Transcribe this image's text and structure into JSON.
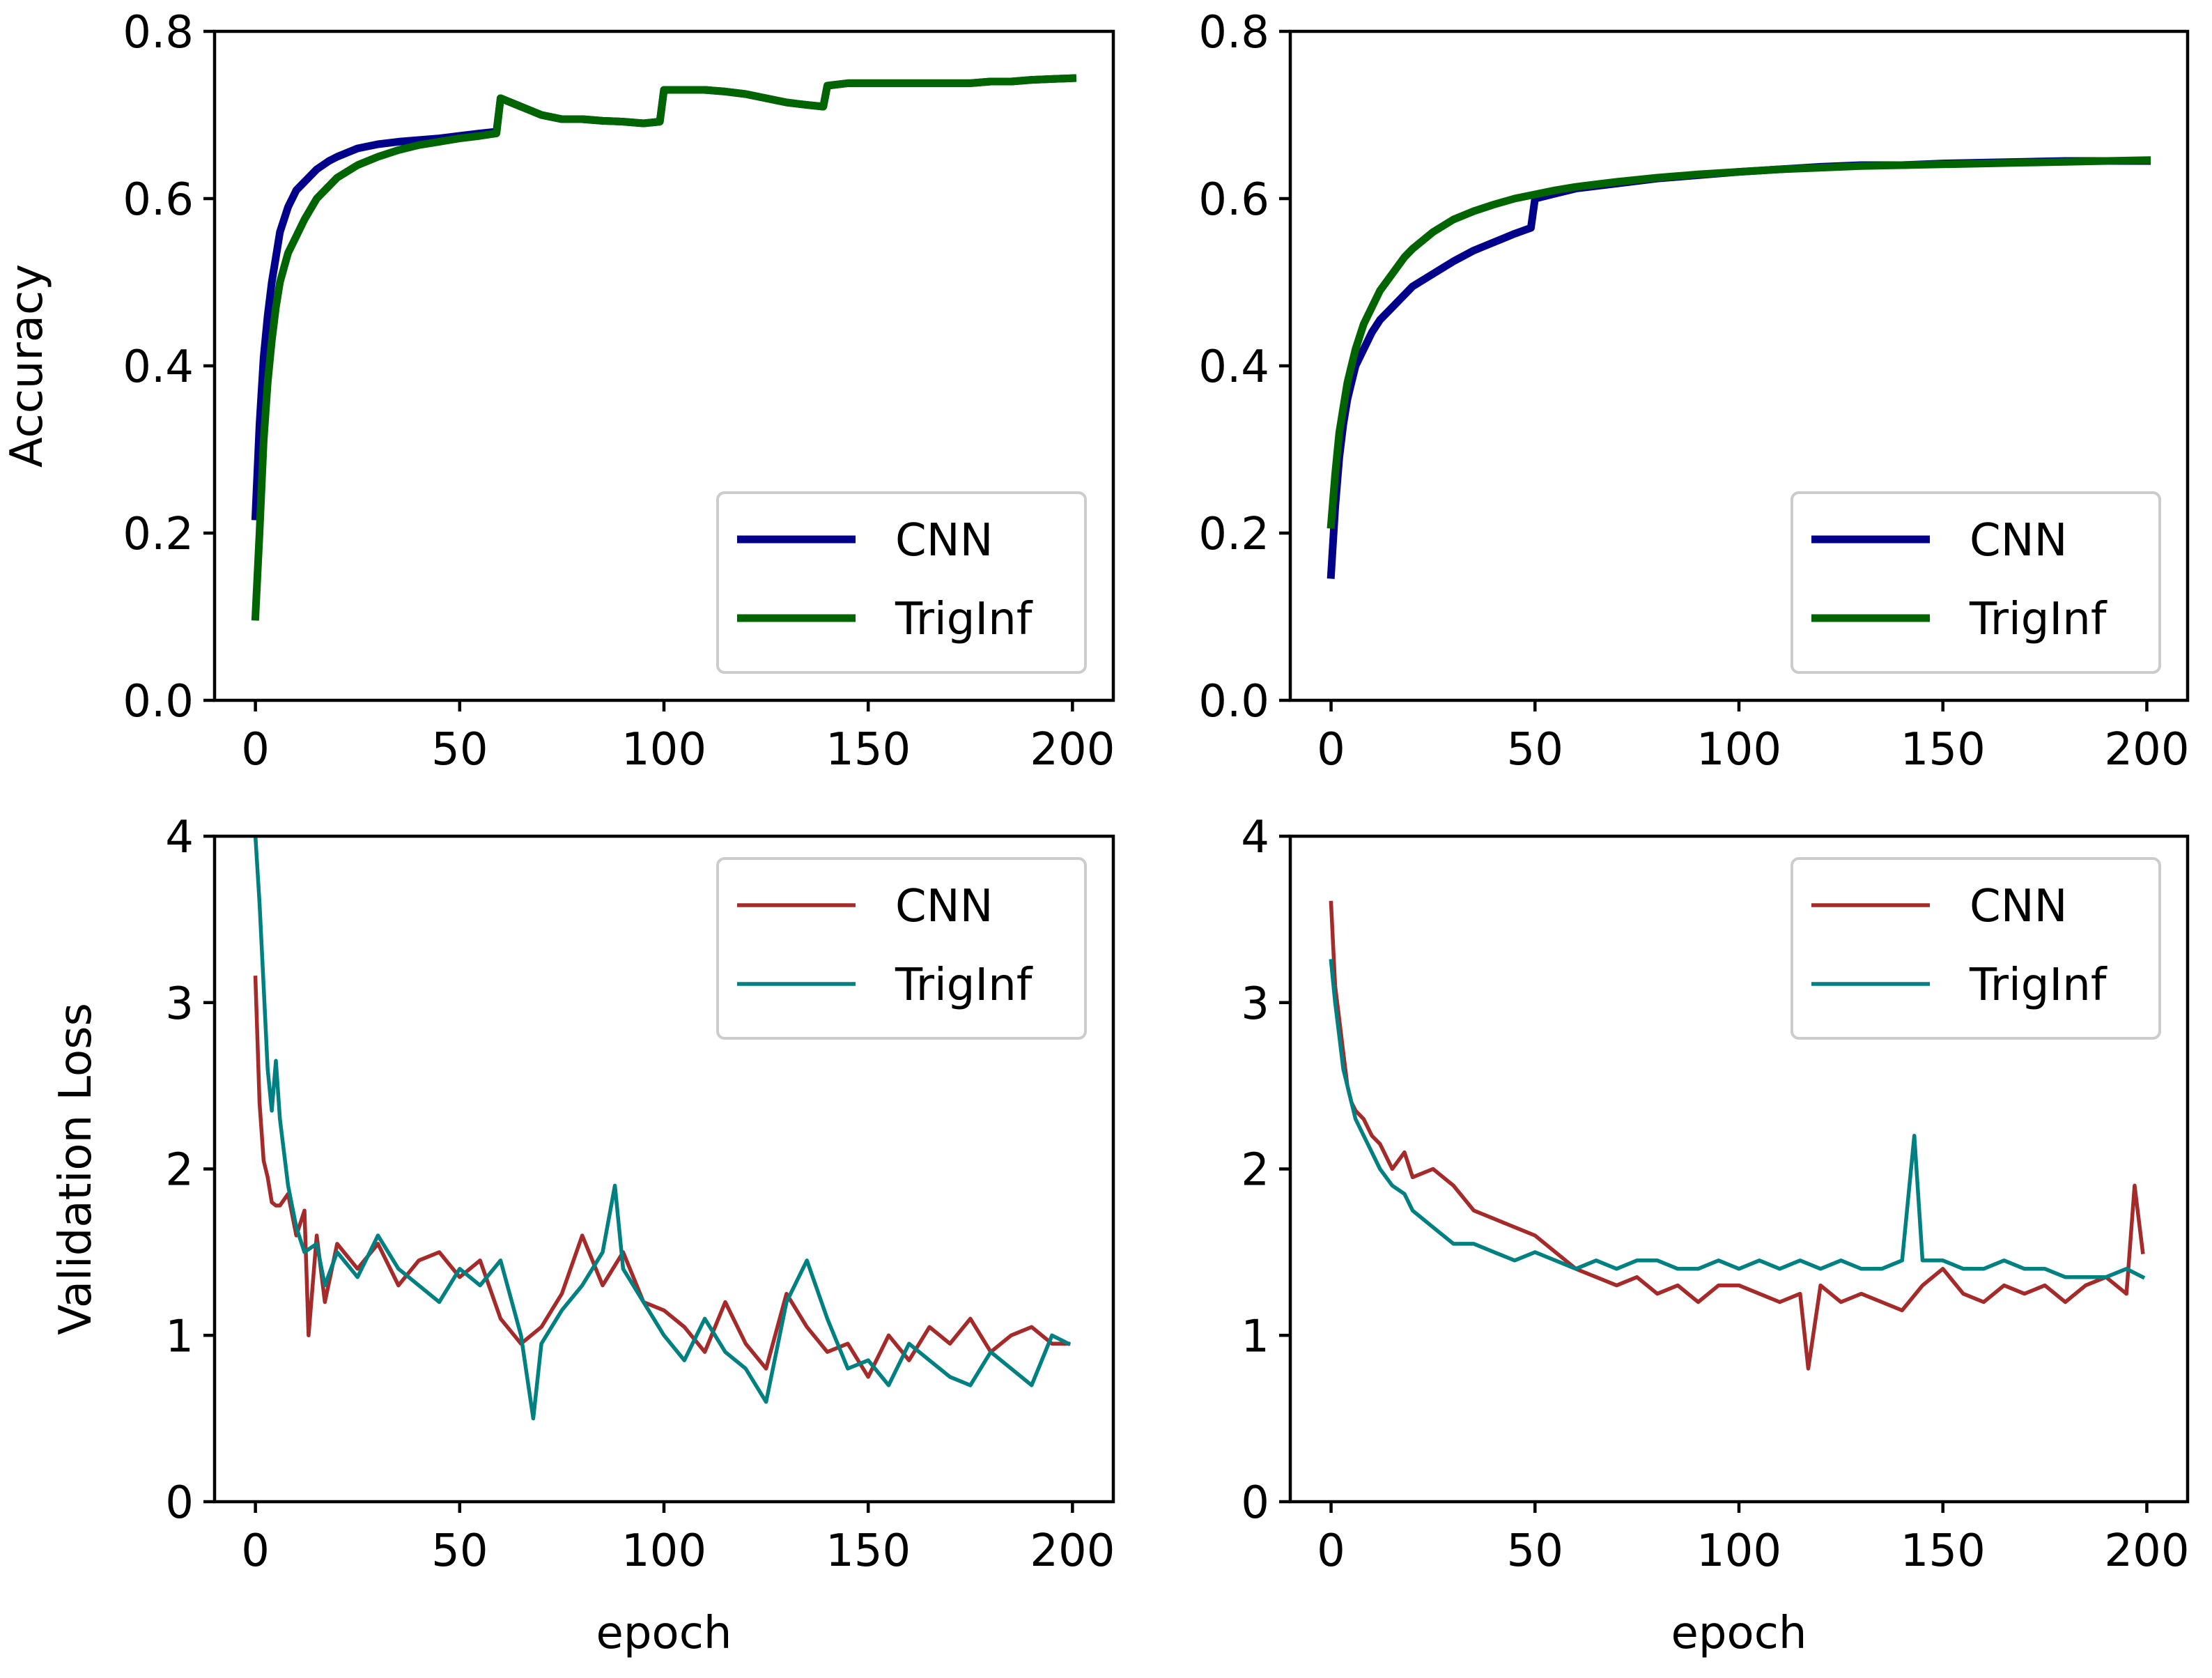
{
  "chart_data": [
    {
      "type": "line",
      "panel": "top-left",
      "title": "",
      "xlabel": "",
      "ylabel": "Accuracy",
      "xlim": [
        -10,
        210
      ],
      "ylim": [
        0.0,
        0.8
      ],
      "xticks": [
        0,
        50,
        100,
        150,
        200
      ],
      "xtick_labels": [
        "0",
        "50",
        "100",
        "150",
        "200"
      ],
      "yticks": [
        0.0,
        0.2,
        0.4,
        0.6,
        0.8
      ],
      "ytick_labels": [
        "0.0",
        "0.2",
        "0.4",
        "0.6",
        "0.8"
      ],
      "legend": "lower right",
      "grid": false,
      "series": [
        {
          "name": "CNN",
          "color": "#00008b",
          "x": [
            0,
            1,
            2,
            3,
            4,
            5,
            6,
            8,
            10,
            12,
            15,
            18,
            20,
            25,
            30,
            35,
            40,
            45,
            50,
            55,
            59,
            60,
            65,
            70,
            75,
            80,
            85,
            90,
            95,
            99,
            100,
            105,
            110,
            115,
            120,
            125,
            130,
            135,
            139,
            140,
            145,
            150,
            155,
            160,
            165,
            170,
            175,
            180,
            185,
            190,
            195,
            200
          ],
          "values": [
            0.22,
            0.33,
            0.41,
            0.46,
            0.5,
            0.53,
            0.56,
            0.59,
            0.61,
            0.62,
            0.635,
            0.645,
            0.65,
            0.66,
            0.665,
            0.668,
            0.67,
            0.672,
            0.675,
            0.678,
            0.68,
            0.72,
            0.71,
            0.7,
            0.695,
            0.695,
            0.693,
            0.692,
            0.69,
            0.692,
            0.73,
            0.73,
            0.73,
            0.728,
            0.725,
            0.72,
            0.715,
            0.712,
            0.71,
            0.735,
            0.738,
            0.738,
            0.738,
            0.738,
            0.738,
            0.738,
            0.738,
            0.74,
            0.74,
            0.742,
            0.743,
            0.744
          ]
        },
        {
          "name": "TrigInf",
          "color": "#006400",
          "x": [
            0,
            1,
            2,
            3,
            4,
            5,
            6,
            8,
            10,
            12,
            15,
            18,
            20,
            25,
            30,
            35,
            40,
            45,
            50,
            55,
            59,
            60,
            65,
            70,
            75,
            80,
            85,
            90,
            95,
            99,
            100,
            105,
            110,
            115,
            120,
            125,
            130,
            135,
            139,
            140,
            145,
            150,
            155,
            160,
            165,
            170,
            175,
            180,
            185,
            190,
            195,
            200
          ],
          "values": [
            0.1,
            0.2,
            0.31,
            0.38,
            0.43,
            0.47,
            0.5,
            0.535,
            0.555,
            0.575,
            0.6,
            0.615,
            0.625,
            0.64,
            0.65,
            0.658,
            0.664,
            0.668,
            0.672,
            0.675,
            0.678,
            0.72,
            0.71,
            0.7,
            0.695,
            0.695,
            0.693,
            0.692,
            0.69,
            0.692,
            0.73,
            0.73,
            0.73,
            0.728,
            0.725,
            0.72,
            0.715,
            0.712,
            0.71,
            0.735,
            0.738,
            0.738,
            0.738,
            0.738,
            0.738,
            0.738,
            0.738,
            0.74,
            0.74,
            0.742,
            0.743,
            0.744
          ]
        }
      ]
    },
    {
      "type": "line",
      "panel": "top-right",
      "title": "",
      "xlabel": "",
      "ylabel": "",
      "xlim": [
        -10,
        210
      ],
      "ylim": [
        0.0,
        0.8
      ],
      "xticks": [
        0,
        50,
        100,
        150,
        200
      ],
      "xtick_labels": [
        "0",
        "50",
        "100",
        "150",
        "200"
      ],
      "yticks": [
        0.0,
        0.2,
        0.4,
        0.6,
        0.8
      ],
      "ytick_labels": [
        "0.0",
        "0.2",
        "0.4",
        "0.6",
        "0.8"
      ],
      "legend": "lower right",
      "grid": false,
      "series": [
        {
          "name": "CNN",
          "color": "#00008b",
          "x": [
            0,
            1,
            2,
            3,
            4,
            5,
            6,
            8,
            10,
            12,
            15,
            18,
            20,
            25,
            30,
            35,
            40,
            45,
            49,
            50,
            55,
            60,
            70,
            80,
            90,
            100,
            110,
            120,
            130,
            140,
            150,
            160,
            170,
            180,
            190,
            200
          ],
          "values": [
            0.15,
            0.23,
            0.29,
            0.33,
            0.36,
            0.38,
            0.4,
            0.42,
            0.44,
            0.455,
            0.47,
            0.485,
            0.495,
            0.51,
            0.525,
            0.538,
            0.548,
            0.558,
            0.565,
            0.6,
            0.606,
            0.612,
            0.618,
            0.624,
            0.628,
            0.632,
            0.635,
            0.638,
            0.64,
            0.64,
            0.642,
            0.643,
            0.644,
            0.645,
            0.645,
            0.645
          ]
        },
        {
          "name": "TrigInf",
          "color": "#006400",
          "x": [
            0,
            1,
            2,
            3,
            4,
            5,
            6,
            8,
            10,
            12,
            15,
            18,
            20,
            25,
            30,
            35,
            40,
            45,
            50,
            55,
            60,
            70,
            80,
            90,
            100,
            110,
            120,
            130,
            140,
            150,
            160,
            170,
            180,
            190,
            200
          ],
          "values": [
            0.21,
            0.27,
            0.32,
            0.35,
            0.38,
            0.4,
            0.42,
            0.45,
            0.47,
            0.49,
            0.51,
            0.53,
            0.54,
            0.56,
            0.575,
            0.585,
            0.593,
            0.6,
            0.605,
            0.61,
            0.614,
            0.62,
            0.625,
            0.629,
            0.632,
            0.635,
            0.637,
            0.639,
            0.64,
            0.641,
            0.642,
            0.643,
            0.644,
            0.645,
            0.646
          ]
        }
      ]
    },
    {
      "type": "line",
      "panel": "bottom-left",
      "title": "",
      "xlabel": "epoch",
      "ylabel": "Validation Loss",
      "xlim": [
        -10,
        210
      ],
      "ylim": [
        0,
        4
      ],
      "xticks": [
        0,
        50,
        100,
        150,
        200
      ],
      "xtick_labels": [
        "0",
        "50",
        "100",
        "150",
        "200"
      ],
      "yticks": [
        0,
        1,
        2,
        3,
        4
      ],
      "ytick_labels": [
        "0",
        "1",
        "2",
        "3",
        "4"
      ],
      "legend": "upper right",
      "grid": false,
      "series": [
        {
          "name": "CNN",
          "color": "#a52a2a",
          "x": [
            0,
            1,
            2,
            3,
            4,
            5,
            6,
            8,
            10,
            12,
            13,
            15,
            17,
            20,
            25,
            30,
            35,
            40,
            45,
            50,
            55,
            60,
            65,
            70,
            75,
            80,
            85,
            90,
            95,
            100,
            105,
            110,
            115,
            120,
            125,
            130,
            135,
            140,
            145,
            150,
            155,
            160,
            165,
            170,
            175,
            180,
            185,
            190,
            195,
            199
          ],
          "values": [
            3.15,
            2.4,
            2.05,
            1.95,
            1.8,
            1.78,
            1.78,
            1.85,
            1.6,
            1.75,
            1.0,
            1.6,
            1.2,
            1.55,
            1.4,
            1.55,
            1.3,
            1.45,
            1.5,
            1.35,
            1.45,
            1.1,
            0.95,
            1.05,
            1.25,
            1.6,
            1.3,
            1.5,
            1.2,
            1.15,
            1.05,
            0.9,
            1.2,
            0.95,
            0.8,
            1.25,
            1.05,
            0.9,
            0.95,
            0.75,
            1.0,
            0.85,
            1.05,
            0.95,
            1.1,
            0.9,
            1.0,
            1.05,
            0.95,
            0.95
          ]
        },
        {
          "name": "TrigInf",
          "color": "#008080",
          "x": [
            0,
            1,
            2,
            3,
            4,
            5,
            6,
            8,
            10,
            12,
            15,
            17,
            20,
            25,
            30,
            35,
            40,
            45,
            50,
            55,
            60,
            65,
            68,
            70,
            75,
            80,
            85,
            88,
            90,
            95,
            100,
            105,
            110,
            115,
            120,
            125,
            130,
            135,
            140,
            145,
            150,
            155,
            160,
            165,
            170,
            175,
            180,
            185,
            190,
            195,
            199
          ],
          "values": [
            4.0,
            3.6,
            3.1,
            2.6,
            2.35,
            2.65,
            2.3,
            1.9,
            1.65,
            1.5,
            1.55,
            1.3,
            1.5,
            1.35,
            1.6,
            1.4,
            1.3,
            1.2,
            1.4,
            1.3,
            1.45,
            1.0,
            0.5,
            0.95,
            1.15,
            1.3,
            1.5,
            1.9,
            1.4,
            1.2,
            1.0,
            0.85,
            1.1,
            0.9,
            0.8,
            0.6,
            1.2,
            1.45,
            1.1,
            0.8,
            0.85,
            0.7,
            0.95,
            0.85,
            0.75,
            0.7,
            0.9,
            0.8,
            0.7,
            1.0,
            0.95
          ]
        }
      ]
    },
    {
      "type": "line",
      "panel": "bottom-right",
      "title": "",
      "xlabel": "epoch",
      "ylabel": "",
      "xlim": [
        -10,
        210
      ],
      "ylim": [
        0,
        4
      ],
      "xticks": [
        0,
        50,
        100,
        150,
        200
      ],
      "xtick_labels": [
        "0",
        "50",
        "100",
        "150",
        "200"
      ],
      "yticks": [
        0,
        1,
        2,
        3,
        4
      ],
      "ytick_labels": [
        "0",
        "1",
        "2",
        "3",
        "4"
      ],
      "legend": "upper right",
      "grid": false,
      "series": [
        {
          "name": "CNN",
          "color": "#a52a2a",
          "x": [
            0,
            1,
            2,
            3,
            4,
            5,
            6,
            8,
            10,
            12,
            15,
            18,
            20,
            25,
            30,
            35,
            40,
            45,
            50,
            55,
            60,
            65,
            70,
            75,
            80,
            85,
            90,
            95,
            100,
            105,
            110,
            115,
            117,
            120,
            125,
            130,
            135,
            140,
            145,
            150,
            155,
            160,
            165,
            170,
            175,
            180,
            185,
            190,
            195,
            197,
            199
          ],
          "values": [
            3.6,
            3.1,
            2.9,
            2.7,
            2.5,
            2.4,
            2.35,
            2.3,
            2.2,
            2.15,
            2.0,
            2.1,
            1.95,
            2.0,
            1.9,
            1.75,
            1.7,
            1.65,
            1.6,
            1.5,
            1.4,
            1.35,
            1.3,
            1.35,
            1.25,
            1.3,
            1.2,
            1.3,
            1.3,
            1.25,
            1.2,
            1.25,
            0.8,
            1.3,
            1.2,
            1.25,
            1.2,
            1.15,
            1.3,
            1.4,
            1.25,
            1.2,
            1.3,
            1.25,
            1.3,
            1.2,
            1.3,
            1.35,
            1.25,
            1.9,
            1.5
          ]
        },
        {
          "name": "TrigInf",
          "color": "#008080",
          "x": [
            0,
            1,
            2,
            3,
            4,
            5,
            6,
            8,
            10,
            12,
            15,
            18,
            20,
            25,
            30,
            35,
            40,
            45,
            50,
            55,
            60,
            65,
            70,
            75,
            80,
            85,
            90,
            95,
            100,
            105,
            110,
            115,
            120,
            125,
            130,
            135,
            140,
            143,
            145,
            150,
            155,
            160,
            165,
            170,
            175,
            180,
            185,
            190,
            195,
            199
          ],
          "values": [
            3.25,
            3.0,
            2.8,
            2.6,
            2.5,
            2.4,
            2.3,
            2.2,
            2.1,
            2.0,
            1.9,
            1.85,
            1.75,
            1.65,
            1.55,
            1.55,
            1.5,
            1.45,
            1.5,
            1.45,
            1.4,
            1.45,
            1.4,
            1.45,
            1.45,
            1.4,
            1.4,
            1.45,
            1.4,
            1.45,
            1.4,
            1.45,
            1.4,
            1.45,
            1.4,
            1.4,
            1.45,
            2.2,
            1.45,
            1.45,
            1.4,
            1.4,
            1.45,
            1.4,
            1.4,
            1.35,
            1.35,
            1.35,
            1.4,
            1.35
          ]
        }
      ]
    }
  ]
}
